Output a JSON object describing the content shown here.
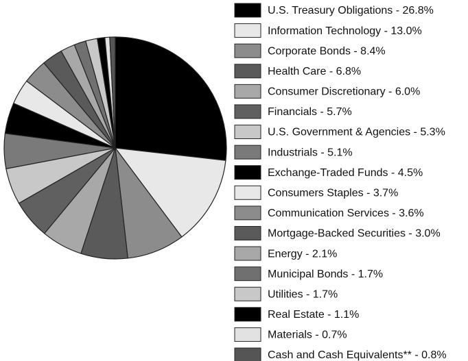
{
  "chart_data": {
    "type": "pie",
    "categories": [
      "U.S. Treasury Obligations - 26.8%",
      "Information Technology - 13.0%",
      "Corporate Bonds - 8.4%",
      "Health Care - 6.8%",
      "Consumer Discretionary - 6.0%",
      "Financials - 5.7%",
      "U.S. Government & Agencies - 5.3%",
      "Industrials - 5.1%",
      "Exchange-Traded Funds - 4.5%",
      "Consumers Staples - 3.7%",
      "Communication Services - 3.6%",
      "Mortgage-Backed Securities - 3.0%",
      "Energy - 2.1%",
      "Municipal Bonds - 1.7%",
      "Utilities - 1.7%",
      "Real Estate - 1.1%",
      "Materials - 0.7%",
      "Cash and Cash Equivalents** - 0.8%"
    ],
    "values": [
      26.8,
      13.0,
      8.4,
      6.8,
      6.0,
      5.7,
      5.3,
      5.1,
      4.5,
      3.7,
      3.6,
      3.0,
      2.1,
      1.7,
      1.7,
      1.1,
      0.7,
      0.8
    ],
    "colors": [
      "#000000",
      "#e8e8e8",
      "#8c8c8c",
      "#5a5a5a",
      "#a8a8a8",
      "#606060",
      "#c8c8c8",
      "#7a7a7a",
      "#000000",
      "#e8e8e8",
      "#8c8c8c",
      "#5a5a5a",
      "#a8a8a8",
      "#707070",
      "#c8c8c8",
      "#000000",
      "#e2e2e2",
      "#555555"
    ]
  }
}
